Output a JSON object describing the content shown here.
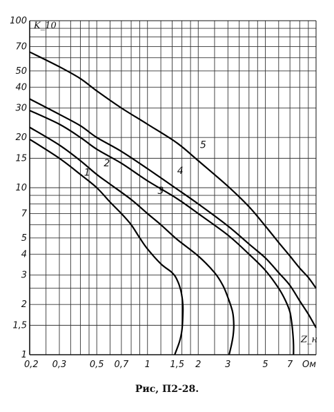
{
  "caption": "Рис, П2-28.",
  "chart_data": {
    "type": "line",
    "title": "",
    "xlabel": "Z_н",
    "ylabel": "K_10",
    "x_scale": "log",
    "y_scale": "log",
    "xlim": [
      0.2,
      10
    ],
    "ylim": [
      1,
      100
    ],
    "grid": true,
    "x_ticks": [
      0.2,
      0.3,
      0.5,
      0.7,
      1,
      1.5,
      2,
      3,
      5,
      7
    ],
    "x_tick_labels": [
      "0,2",
      "0,3",
      "0,5",
      "0,7",
      "1",
      "1,5",
      "2",
      "3",
      "5",
      "7"
    ],
    "x_unit_label": "Ом",
    "x_grid": [
      0.2,
      0.25,
      0.3,
      0.35,
      0.4,
      0.45,
      0.5,
      0.6,
      0.7,
      0.8,
      0.9,
      1,
      1.2,
      1.4,
      1.6,
      1.8,
      2,
      2.5,
      3,
      3.5,
      4,
      4.5,
      5,
      6,
      7,
      8,
      9,
      10
    ],
    "y_ticks": [
      1,
      1.5,
      2,
      3,
      4,
      5,
      7,
      10,
      15,
      20,
      30,
      40,
      50,
      70,
      100
    ],
    "y_tick_labels": [
      "1",
      "1,5",
      "2",
      "3",
      "4",
      "5",
      "7",
      "10",
      "15",
      "20",
      "30",
      "40",
      "50",
      "70",
      "100"
    ],
    "y_grid": [
      1,
      1.5,
      2,
      2.5,
      3,
      4,
      5,
      6,
      7,
      8,
      9,
      10,
      15,
      20,
      30,
      40,
      50,
      60,
      70,
      80,
      90,
      100
    ],
    "series": [
      {
        "name": "1",
        "x": [
          0.2,
          0.3,
          0.4,
          0.5,
          0.6,
          0.7,
          0.8,
          0.9,
          1.0,
          1.2,
          1.4,
          1.5,
          1.58,
          1.62,
          1.62,
          1.6,
          1.55,
          1.45
        ],
        "y": [
          19.5,
          15.0,
          12.0,
          10.0,
          8.2,
          7.0,
          6.0,
          5.0,
          4.3,
          3.5,
          3.1,
          2.8,
          2.4,
          2.0,
          1.7,
          1.4,
          1.2,
          1.0
        ]
      },
      {
        "name": "2",
        "x": [
          0.2,
          0.3,
          0.4,
          0.5,
          0.6,
          0.8,
          1.0,
          1.2,
          1.5,
          2.0,
          2.5,
          2.8,
          3.0,
          3.2,
          3.25,
          3.22,
          3.15,
          3.05
        ],
        "y": [
          23.0,
          18.0,
          14.5,
          12.0,
          10.5,
          8.5,
          7.0,
          6.0,
          4.9,
          3.9,
          3.1,
          2.6,
          2.2,
          1.8,
          1.5,
          1.3,
          1.15,
          1.0
        ]
      },
      {
        "name": "3",
        "x": [
          0.2,
          0.3,
          0.4,
          0.5,
          0.7,
          1.0,
          1.5,
          2.0,
          3.0,
          4.0,
          5.0,
          6.0,
          6.6,
          7.0,
          7.2,
          7.3,
          7.35,
          7.35
        ],
        "y": [
          29.0,
          24.0,
          20.0,
          17.0,
          14.0,
          11.0,
          8.6,
          7.0,
          5.2,
          4.0,
          3.2,
          2.5,
          2.1,
          1.8,
          1.5,
          1.3,
          1.15,
          1.0
        ]
      },
      {
        "name": "4",
        "x": [
          0.2,
          0.3,
          0.4,
          0.5,
          0.7,
          1.0,
          1.5,
          2.0,
          3.0,
          4.0,
          5.0,
          6.0,
          7.0,
          8.0,
          9.0,
          10.0
        ],
        "y": [
          34.0,
          27.5,
          23.5,
          20.0,
          16.5,
          13.0,
          9.8,
          8.0,
          5.9,
          4.6,
          3.8,
          3.1,
          2.6,
          2.1,
          1.75,
          1.45
        ]
      },
      {
        "name": "5",
        "x": [
          0.2,
          0.3,
          0.4,
          0.5,
          0.7,
          1.0,
          1.5,
          2.0,
          3.0,
          4.0,
          5.0,
          6.0,
          7.0,
          8.0,
          9.0,
          10.0
        ],
        "y": [
          65.0,
          53.0,
          45.0,
          38.0,
          30.0,
          24.0,
          18.5,
          14.5,
          10.2,
          7.7,
          5.9,
          4.7,
          3.9,
          3.3,
          2.9,
          2.5
        ]
      }
    ],
    "curve_labels": [
      {
        "text": "1",
        "x": 0.42,
        "y": 11.8
      },
      {
        "text": "2",
        "x": 0.55,
        "y": 13.4
      },
      {
        "text": "3",
        "x": 1.15,
        "y": 9.2
      },
      {
        "text": "4",
        "x": 1.5,
        "y": 12.1
      },
      {
        "text": "5",
        "x": 2.05,
        "y": 17.3
      }
    ]
  }
}
